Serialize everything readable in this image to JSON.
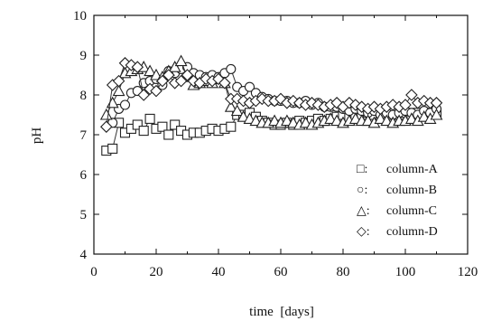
{
  "chart_data": {
    "type": "scatter",
    "xlabel": "time  [days]",
    "ylabel": "pH",
    "xlim": [
      0,
      120
    ],
    "ylim": [
      4,
      10
    ],
    "xticks": [
      0,
      20,
      40,
      60,
      80,
      100,
      120
    ],
    "yticks": [
      4,
      5,
      6,
      7,
      8,
      9,
      10
    ],
    "grid": false,
    "legend_position": "lower-right",
    "series": [
      {
        "name": "column-A",
        "marker": "square",
        "connected": true,
        "x": [
          4,
          6,
          8,
          10,
          12,
          14,
          16,
          18,
          20,
          22,
          24,
          26,
          28,
          30,
          32,
          34,
          36,
          38,
          40,
          42,
          44,
          46,
          48,
          50,
          52,
          54,
          56,
          58,
          60,
          62,
          64,
          66,
          68,
          70,
          72,
          74,
          76,
          78,
          80,
          82,
          84,
          86,
          88,
          90,
          92,
          94,
          96,
          98,
          100,
          102,
          104,
          106,
          108,
          110
        ],
        "y": [
          6.6,
          6.65,
          7.3,
          7.05,
          7.15,
          7.25,
          7.1,
          7.4,
          7.15,
          7.2,
          7.0,
          7.25,
          7.1,
          7.0,
          7.05,
          7.05,
          7.1,
          7.15,
          7.1,
          7.15,
          7.2,
          7.5,
          7.5,
          7.55,
          7.45,
          7.35,
          7.3,
          7.25,
          7.25,
          7.3,
          7.25,
          7.35,
          7.3,
          7.35,
          7.4,
          7.35,
          7.4,
          7.45,
          7.5,
          7.45,
          7.45,
          7.5,
          7.55,
          7.5,
          7.45,
          7.5,
          7.55,
          7.5,
          7.55,
          7.5,
          7.55,
          7.5,
          7.55,
          7.55
        ]
      },
      {
        "name": "column-B",
        "marker": "circle",
        "connected": true,
        "x": [
          6,
          8,
          10,
          12,
          14,
          16,
          18,
          20,
          22,
          24,
          26,
          28,
          30,
          32,
          34,
          36,
          38,
          40,
          42,
          44,
          46,
          48,
          50,
          52,
          54,
          56,
          58,
          60,
          62,
          64,
          66,
          68,
          70,
          72,
          74,
          76,
          78,
          80,
          82,
          84,
          86,
          88,
          90,
          92,
          94,
          96,
          98,
          100,
          102,
          104,
          106,
          108,
          110
        ],
        "y": [
          7.3,
          7.65,
          7.75,
          8.05,
          8.1,
          8.3,
          8.35,
          8.4,
          8.25,
          8.6,
          8.55,
          8.65,
          8.7,
          8.55,
          8.5,
          8.45,
          8.5,
          8.45,
          8.55,
          8.65,
          8.2,
          8.1,
          8.2,
          8.05,
          7.95,
          7.9,
          7.85,
          7.85,
          7.85,
          7.8,
          7.8,
          7.85,
          7.75,
          7.8,
          7.7,
          7.7,
          7.7,
          7.65,
          7.6,
          7.65,
          7.6,
          7.55,
          7.6,
          7.5,
          7.55,
          7.5,
          7.55,
          7.6,
          7.55,
          7.5,
          7.6,
          7.55,
          7.65
        ]
      },
      {
        "name": "column-C",
        "marker": "triangle",
        "connected": true,
        "x": [
          4,
          6,
          8,
          10,
          12,
          14,
          16,
          18,
          20,
          22,
          24,
          26,
          28,
          30,
          32,
          34,
          36,
          38,
          40,
          42,
          44,
          46,
          48,
          50,
          52,
          54,
          56,
          58,
          60,
          62,
          64,
          66,
          68,
          70,
          72,
          74,
          76,
          78,
          80,
          82,
          84,
          86,
          88,
          90,
          92,
          94,
          96,
          98,
          100,
          102,
          104,
          106,
          108,
          110
        ],
        "y": [
          7.5,
          7.8,
          8.1,
          8.55,
          8.6,
          8.65,
          8.7,
          8.6,
          8.5,
          8.45,
          8.6,
          8.7,
          8.85,
          8.45,
          8.25,
          8.3,
          8.35,
          8.3,
          8.4,
          8.3,
          7.7,
          7.6,
          7.45,
          7.4,
          7.35,
          7.3,
          7.3,
          7.35,
          7.3,
          7.35,
          7.3,
          7.25,
          7.3,
          7.25,
          7.3,
          7.35,
          7.4,
          7.35,
          7.3,
          7.35,
          7.4,
          7.35,
          7.35,
          7.3,
          7.4,
          7.35,
          7.3,
          7.35,
          7.35,
          7.4,
          7.35,
          7.45,
          7.4,
          7.5
        ]
      },
      {
        "name": "column-D",
        "marker": "diamond",
        "connected": true,
        "x": [
          4,
          6,
          8,
          10,
          12,
          14,
          16,
          18,
          20,
          22,
          24,
          26,
          28,
          30,
          32,
          34,
          36,
          38,
          40,
          42,
          44,
          46,
          48,
          50,
          52,
          54,
          56,
          58,
          60,
          62,
          64,
          66,
          68,
          70,
          72,
          74,
          76,
          78,
          80,
          82,
          84,
          86,
          88,
          90,
          92,
          94,
          96,
          98,
          100,
          102,
          104,
          106,
          108,
          110
        ],
        "y": [
          7.2,
          8.25,
          8.35,
          8.8,
          8.75,
          8.7,
          8.0,
          8.15,
          8.1,
          8.35,
          8.5,
          8.3,
          8.35,
          8.5,
          8.35,
          8.3,
          8.4,
          8.35,
          8.4,
          8.3,
          7.9,
          7.9,
          7.85,
          7.8,
          7.85,
          7.9,
          7.85,
          7.85,
          7.9,
          7.8,
          7.85,
          7.8,
          7.75,
          7.8,
          7.75,
          7.7,
          7.75,
          7.8,
          7.7,
          7.8,
          7.75,
          7.7,
          7.65,
          7.7,
          7.65,
          7.7,
          7.75,
          7.7,
          7.75,
          8.0,
          7.8,
          7.85,
          7.8,
          7.8
        ]
      }
    ],
    "legend": {
      "entries": [
        {
          "glyph": "□:",
          "label": "column-A"
        },
        {
          "glyph": "○:",
          "label": "column-B"
        },
        {
          "glyph": "△:",
          "label": "column-C"
        },
        {
          "glyph": "◇:",
          "label": "column-D"
        }
      ]
    }
  }
}
